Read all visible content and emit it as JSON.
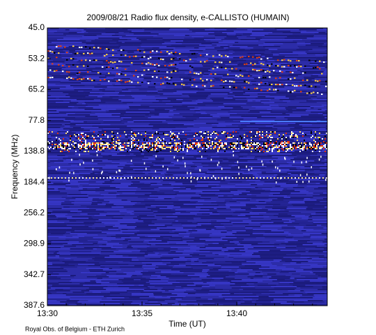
{
  "chart_data": {
    "type": "spectrogram",
    "title": "2009/08/21  Radio flux density, e-CALLISTO (HUMAIN)",
    "x_label": "Time (UT)",
    "y_label": "Frequency (MHz)",
    "footer": "Royal Obs. of Belgium - ETH Zurich",
    "xticks": [
      "13:30",
      "13:35",
      "13:40"
    ],
    "yticks": [
      {
        "value": 45,
        "label": "45.0"
      },
      53.2,
      65.2,
      77.8,
      138.8,
      184.4,
      256.2,
      298.9,
      342.7,
      387.6
    ]
  }
}
